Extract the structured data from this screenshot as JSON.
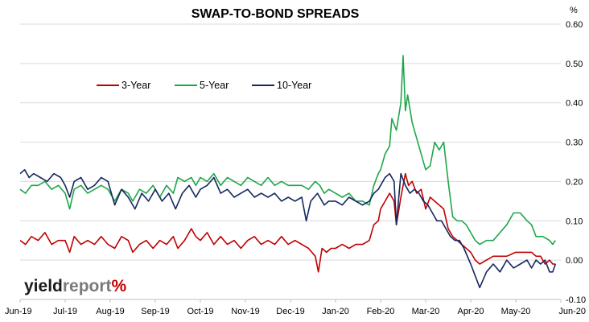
{
  "chart_data": {
    "type": "line",
    "title": "SWAP-TO-BOND SPREADS",
    "ylabel": "%",
    "xlabel": "",
    "ylim": [
      -0.1,
      0.6
    ],
    "yticks": [
      "0.60",
      "0.50",
      "0.40",
      "0.30",
      "0.20",
      "0.10",
      "0.00",
      "-0.10"
    ],
    "xticks": [
      "Jun-19",
      "Jul-19",
      "Aug-19",
      "Sep-19",
      "Oct-19",
      "Nov-19",
      "Dec-19",
      "Jan-20",
      "Feb-20",
      "Mar-20",
      "Apr-20",
      "May-20",
      "Jun-20"
    ],
    "grid": "horizontal",
    "legend_position": "top-left",
    "series": [
      {
        "name": "3-Year",
        "color": "#c00000",
        "points": [
          [
            0,
            0.05
          ],
          [
            0.12,
            0.04
          ],
          [
            0.25,
            0.06
          ],
          [
            0.4,
            0.05
          ],
          [
            0.55,
            0.07
          ],
          [
            0.7,
            0.04
          ],
          [
            0.85,
            0.05
          ],
          [
            1,
            0.05
          ],
          [
            1.1,
            0.02
          ],
          [
            1.2,
            0.06
          ],
          [
            1.35,
            0.04
          ],
          [
            1.5,
            0.05
          ],
          [
            1.65,
            0.04
          ],
          [
            1.8,
            0.06
          ],
          [
            1.95,
            0.04
          ],
          [
            2.1,
            0.03
          ],
          [
            2.25,
            0.06
          ],
          [
            2.4,
            0.05
          ],
          [
            2.5,
            0.02
          ],
          [
            2.65,
            0.04
          ],
          [
            2.8,
            0.05
          ],
          [
            2.95,
            0.03
          ],
          [
            3.1,
            0.05
          ],
          [
            3.25,
            0.04
          ],
          [
            3.4,
            0.06
          ],
          [
            3.5,
            0.03
          ],
          [
            3.65,
            0.05
          ],
          [
            3.8,
            0.08
          ],
          [
            3.9,
            0.06
          ],
          [
            4,
            0.05
          ],
          [
            4.15,
            0.07
          ],
          [
            4.3,
            0.04
          ],
          [
            4.45,
            0.06
          ],
          [
            4.6,
            0.04
          ],
          [
            4.75,
            0.05
          ],
          [
            4.9,
            0.03
          ],
          [
            5.05,
            0.05
          ],
          [
            5.2,
            0.06
          ],
          [
            5.35,
            0.04
          ],
          [
            5.5,
            0.05
          ],
          [
            5.65,
            0.04
          ],
          [
            5.8,
            0.06
          ],
          [
            5.95,
            0.04
          ],
          [
            6.1,
            0.05
          ],
          [
            6.25,
            0.04
          ],
          [
            6.4,
            0.03
          ],
          [
            6.55,
            0.01
          ],
          [
            6.62,
            -0.03
          ],
          [
            6.7,
            0.03
          ],
          [
            6.8,
            0.02
          ],
          [
            6.9,
            0.03
          ],
          [
            7,
            0.03
          ],
          [
            7.15,
            0.04
          ],
          [
            7.3,
            0.03
          ],
          [
            7.45,
            0.04
          ],
          [
            7.6,
            0.04
          ],
          [
            7.75,
            0.05
          ],
          [
            7.85,
            0.09
          ],
          [
            7.95,
            0.1
          ],
          [
            8,
            0.13
          ],
          [
            8.1,
            0.15
          ],
          [
            8.2,
            0.17
          ],
          [
            8.3,
            0.15
          ],
          [
            8.35,
            0.09
          ],
          [
            8.45,
            0.16
          ],
          [
            8.55,
            0.22
          ],
          [
            8.62,
            0.19
          ],
          [
            8.7,
            0.2
          ],
          [
            8.8,
            0.17
          ],
          [
            8.9,
            0.18
          ],
          [
            9,
            0.13
          ],
          [
            9.1,
            0.16
          ],
          [
            9.2,
            0.15
          ],
          [
            9.3,
            0.14
          ],
          [
            9.4,
            0.13
          ],
          [
            9.5,
            0.08
          ],
          [
            9.6,
            0.06
          ],
          [
            9.7,
            0.05
          ],
          [
            9.8,
            0.04
          ],
          [
            9.9,
            0.03
          ],
          [
            10,
            0.02
          ],
          [
            10.1,
            0.0
          ],
          [
            10.2,
            -0.01
          ],
          [
            10.35,
            0.0
          ],
          [
            10.5,
            0.01
          ],
          [
            10.65,
            0.01
          ],
          [
            10.8,
            0.01
          ],
          [
            11,
            0.02
          ],
          [
            11.2,
            0.02
          ],
          [
            11.35,
            0.02
          ],
          [
            11.45,
            0.01
          ],
          [
            11.55,
            0.01
          ],
          [
            11.65,
            -0.01
          ],
          [
            11.75,
            0.0
          ],
          [
            11.82,
            -0.01
          ],
          [
            11.88,
            -0.01
          ]
        ]
      },
      {
        "name": "5-Year",
        "color": "#1fa64a",
        "points": [
          [
            0,
            0.18
          ],
          [
            0.12,
            0.17
          ],
          [
            0.25,
            0.19
          ],
          [
            0.4,
            0.19
          ],
          [
            0.55,
            0.2
          ],
          [
            0.7,
            0.18
          ],
          [
            0.85,
            0.19
          ],
          [
            1,
            0.17
          ],
          [
            1.1,
            0.13
          ],
          [
            1.2,
            0.18
          ],
          [
            1.35,
            0.19
          ],
          [
            1.5,
            0.17
          ],
          [
            1.65,
            0.18
          ],
          [
            1.8,
            0.19
          ],
          [
            1.95,
            0.18
          ],
          [
            2.1,
            0.15
          ],
          [
            2.25,
            0.18
          ],
          [
            2.4,
            0.17
          ],
          [
            2.5,
            0.15
          ],
          [
            2.65,
            0.18
          ],
          [
            2.8,
            0.17
          ],
          [
            2.95,
            0.19
          ],
          [
            3.1,
            0.16
          ],
          [
            3.25,
            0.19
          ],
          [
            3.4,
            0.17
          ],
          [
            3.5,
            0.21
          ],
          [
            3.65,
            0.2
          ],
          [
            3.8,
            0.21
          ],
          [
            3.9,
            0.19
          ],
          [
            4,
            0.21
          ],
          [
            4.15,
            0.2
          ],
          [
            4.3,
            0.22
          ],
          [
            4.45,
            0.19
          ],
          [
            4.6,
            0.21
          ],
          [
            4.75,
            0.2
          ],
          [
            4.9,
            0.19
          ],
          [
            5.05,
            0.21
          ],
          [
            5.2,
            0.2
          ],
          [
            5.35,
            0.19
          ],
          [
            5.5,
            0.21
          ],
          [
            5.65,
            0.19
          ],
          [
            5.8,
            0.2
          ],
          [
            5.95,
            0.19
          ],
          [
            6.1,
            0.19
          ],
          [
            6.25,
            0.19
          ],
          [
            6.4,
            0.18
          ],
          [
            6.55,
            0.2
          ],
          [
            6.65,
            0.19
          ],
          [
            6.75,
            0.17
          ],
          [
            6.85,
            0.18
          ],
          [
            7,
            0.17
          ],
          [
            7.15,
            0.16
          ],
          [
            7.3,
            0.17
          ],
          [
            7.45,
            0.15
          ],
          [
            7.6,
            0.15
          ],
          [
            7.75,
            0.14
          ],
          [
            7.85,
            0.19
          ],
          [
            7.95,
            0.22
          ],
          [
            8,
            0.23
          ],
          [
            8.1,
            0.27
          ],
          [
            8.2,
            0.29
          ],
          [
            8.25,
            0.36
          ],
          [
            8.35,
            0.33
          ],
          [
            8.45,
            0.4
          ],
          [
            8.5,
            0.52
          ],
          [
            8.55,
            0.38
          ],
          [
            8.6,
            0.42
          ],
          [
            8.7,
            0.35
          ],
          [
            8.8,
            0.31
          ],
          [
            8.9,
            0.27
          ],
          [
            9,
            0.23
          ],
          [
            9.1,
            0.24
          ],
          [
            9.2,
            0.3
          ],
          [
            9.3,
            0.28
          ],
          [
            9.4,
            0.3
          ],
          [
            9.5,
            0.2
          ],
          [
            9.6,
            0.11
          ],
          [
            9.7,
            0.1
          ],
          [
            9.8,
            0.1
          ],
          [
            9.9,
            0.09
          ],
          [
            10,
            0.07
          ],
          [
            10.1,
            0.05
          ],
          [
            10.2,
            0.04
          ],
          [
            10.35,
            0.05
          ],
          [
            10.5,
            0.05
          ],
          [
            10.65,
            0.07
          ],
          [
            10.8,
            0.09
          ],
          [
            10.95,
            0.12
          ],
          [
            11.1,
            0.12
          ],
          [
            11.25,
            0.1
          ],
          [
            11.35,
            0.09
          ],
          [
            11.45,
            0.06
          ],
          [
            11.6,
            0.06
          ],
          [
            11.75,
            0.05
          ],
          [
            11.82,
            0.04
          ],
          [
            11.88,
            0.05
          ]
        ]
      },
      {
        "name": "10-Year",
        "color": "#16285e",
        "points": [
          [
            0,
            0.22
          ],
          [
            0.1,
            0.23
          ],
          [
            0.2,
            0.21
          ],
          [
            0.3,
            0.22
          ],
          [
            0.45,
            0.21
          ],
          [
            0.6,
            0.2
          ],
          [
            0.75,
            0.22
          ],
          [
            0.9,
            0.21
          ],
          [
            1,
            0.19
          ],
          [
            1.1,
            0.16
          ],
          [
            1.2,
            0.2
          ],
          [
            1.35,
            0.21
          ],
          [
            1.5,
            0.18
          ],
          [
            1.65,
            0.19
          ],
          [
            1.8,
            0.21
          ],
          [
            1.95,
            0.2
          ],
          [
            2.1,
            0.14
          ],
          [
            2.25,
            0.18
          ],
          [
            2.4,
            0.16
          ],
          [
            2.55,
            0.13
          ],
          [
            2.7,
            0.17
          ],
          [
            2.85,
            0.15
          ],
          [
            3,
            0.18
          ],
          [
            3.15,
            0.15
          ],
          [
            3.3,
            0.17
          ],
          [
            3.45,
            0.13
          ],
          [
            3.6,
            0.17
          ],
          [
            3.75,
            0.19
          ],
          [
            3.9,
            0.16
          ],
          [
            4,
            0.18
          ],
          [
            4.15,
            0.19
          ],
          [
            4.3,
            0.21
          ],
          [
            4.45,
            0.17
          ],
          [
            4.6,
            0.18
          ],
          [
            4.75,
            0.16
          ],
          [
            4.9,
            0.17
          ],
          [
            5.05,
            0.18
          ],
          [
            5.2,
            0.16
          ],
          [
            5.35,
            0.17
          ],
          [
            5.5,
            0.16
          ],
          [
            5.65,
            0.17
          ],
          [
            5.8,
            0.15
          ],
          [
            5.95,
            0.16
          ],
          [
            6.1,
            0.15
          ],
          [
            6.25,
            0.16
          ],
          [
            6.35,
            0.1
          ],
          [
            6.45,
            0.15
          ],
          [
            6.6,
            0.17
          ],
          [
            6.75,
            0.14
          ],
          [
            6.85,
            0.15
          ],
          [
            7,
            0.15
          ],
          [
            7.15,
            0.14
          ],
          [
            7.3,
            0.16
          ],
          [
            7.45,
            0.15
          ],
          [
            7.6,
            0.14
          ],
          [
            7.75,
            0.15
          ],
          [
            7.85,
            0.17
          ],
          [
            7.95,
            0.18
          ],
          [
            8,
            0.19
          ],
          [
            8.1,
            0.21
          ],
          [
            8.2,
            0.22
          ],
          [
            8.3,
            0.2
          ],
          [
            8.35,
            0.09
          ],
          [
            8.45,
            0.22
          ],
          [
            8.55,
            0.19
          ],
          [
            8.65,
            0.17
          ],
          [
            8.75,
            0.18
          ],
          [
            8.85,
            0.17
          ],
          [
            8.95,
            0.15
          ],
          [
            9.05,
            0.14
          ],
          [
            9.15,
            0.12
          ],
          [
            9.25,
            0.1
          ],
          [
            9.35,
            0.1
          ],
          [
            9.45,
            0.08
          ],
          [
            9.55,
            0.06
          ],
          [
            9.65,
            0.05
          ],
          [
            9.75,
            0.05
          ],
          [
            9.85,
            0.03
          ],
          [
            10,
            -0.01
          ],
          [
            10.1,
            -0.04
          ],
          [
            10.2,
            -0.07
          ],
          [
            10.35,
            -0.03
          ],
          [
            10.5,
            -0.01
          ],
          [
            10.65,
            -0.03
          ],
          [
            10.8,
            0.0
          ],
          [
            10.95,
            -0.02
          ],
          [
            11.1,
            -0.01
          ],
          [
            11.25,
            0.0
          ],
          [
            11.35,
            -0.02
          ],
          [
            11.45,
            0.0
          ],
          [
            11.55,
            -0.01
          ],
          [
            11.65,
            0.0
          ],
          [
            11.75,
            -0.03
          ],
          [
            11.82,
            -0.03
          ],
          [
            11.88,
            -0.01
          ]
        ]
      }
    ]
  },
  "logo": {
    "part1": "yield",
    "part2": "report",
    "part3": "%"
  }
}
